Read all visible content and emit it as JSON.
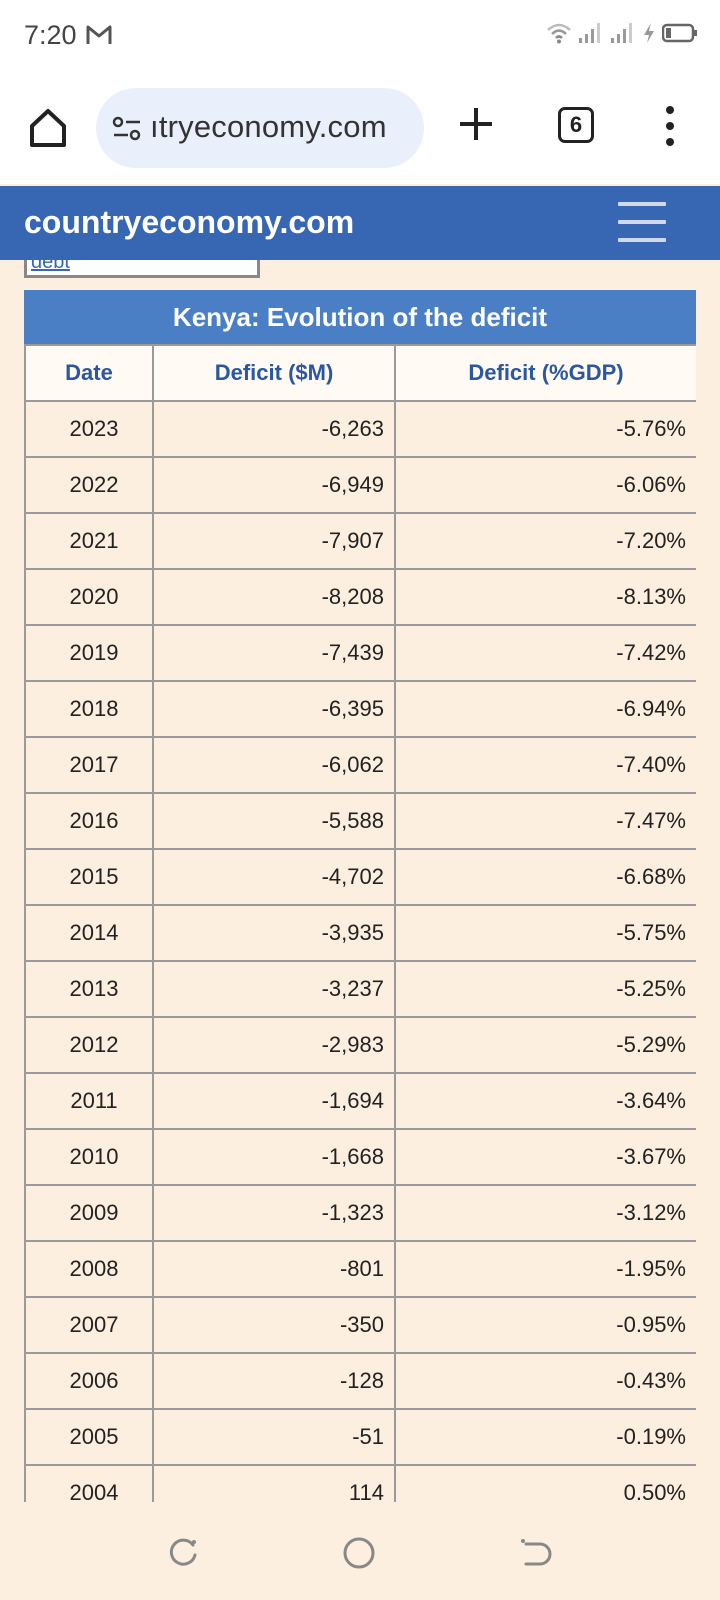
{
  "status_bar": {
    "time": "7:20",
    "icons": [
      "gmail-icon",
      "wifi-icon",
      "signal-icon",
      "signal-icon",
      "charging-icon",
      "battery-icon"
    ]
  },
  "browser": {
    "url": "ıtryeconomy.com",
    "tab_count": "6",
    "icons": [
      "home-icon",
      "page-info-icon",
      "plus-icon",
      "tabs-icon",
      "more-vert-icon"
    ]
  },
  "site": {
    "title": "countryeconomy.com",
    "partial_link": "debt"
  },
  "table": {
    "caption": "Kenya: Evolution of the deficit",
    "headers": [
      "Date",
      "Deficit ($M)",
      "Deficit (%GDP)"
    ],
    "rows": [
      {
        "date": "2023",
        "deficit_m": "-6,263",
        "deficit_gdp": "-5.76%"
      },
      {
        "date": "2022",
        "deficit_m": "-6,949",
        "deficit_gdp": "-6.06%"
      },
      {
        "date": "2021",
        "deficit_m": "-7,907",
        "deficit_gdp": "-7.20%"
      },
      {
        "date": "2020",
        "deficit_m": "-8,208",
        "deficit_gdp": "-8.13%"
      },
      {
        "date": "2019",
        "deficit_m": "-7,439",
        "deficit_gdp": "-7.42%"
      },
      {
        "date": "2018",
        "deficit_m": "-6,395",
        "deficit_gdp": "-6.94%"
      },
      {
        "date": "2017",
        "deficit_m": "-6,062",
        "deficit_gdp": "-7.40%"
      },
      {
        "date": "2016",
        "deficit_m": "-5,588",
        "deficit_gdp": "-7.47%"
      },
      {
        "date": "2015",
        "deficit_m": "-4,702",
        "deficit_gdp": "-6.68%"
      },
      {
        "date": "2014",
        "deficit_m": "-3,935",
        "deficit_gdp": "-5.75%"
      },
      {
        "date": "2013",
        "deficit_m": "-3,237",
        "deficit_gdp": "-5.25%"
      },
      {
        "date": "2012",
        "deficit_m": "-2,983",
        "deficit_gdp": "-5.29%"
      },
      {
        "date": "2011",
        "deficit_m": "-1,694",
        "deficit_gdp": "-3.64%"
      },
      {
        "date": "2010",
        "deficit_m": "-1,668",
        "deficit_gdp": "-3.67%"
      },
      {
        "date": "2009",
        "deficit_m": "-1,323",
        "deficit_gdp": "-3.12%"
      },
      {
        "date": "2008",
        "deficit_m": "-801",
        "deficit_gdp": "-1.95%"
      },
      {
        "date": "2007",
        "deficit_m": "-350",
        "deficit_gdp": "-0.95%"
      },
      {
        "date": "2006",
        "deficit_m": "-128",
        "deficit_gdp": "-0.43%"
      },
      {
        "date": "2005",
        "deficit_m": "-51",
        "deficit_gdp": "-0.19%"
      },
      {
        "date": "2004",
        "deficit_m": "114",
        "deficit_gdp": "0.50%"
      }
    ]
  },
  "nav_bar": {
    "icons": [
      "recents-icon",
      "home-circle-icon",
      "back-icon"
    ]
  },
  "colors": {
    "site_header": "#3767b2",
    "table_caption": "#4a7fc5",
    "header_text": "#2a57a0",
    "page_background": "#fdefdf",
    "url_pill": "#eaf0fb"
  }
}
